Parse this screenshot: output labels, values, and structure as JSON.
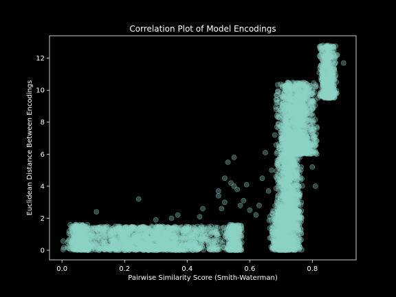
{
  "chart_data": {
    "type": "scatter",
    "title": "Correlation Plot of Model Encodings",
    "xlabel": "Pairwise Similarity Score (Smith-Waterman)",
    "ylabel": "Euclidean Distance Between Encodings",
    "xlim": [
      -0.04,
      0.94
    ],
    "ylim": [
      -0.6,
      13.4
    ],
    "xticks": [
      0.0,
      0.2,
      0.4,
      0.6,
      0.8
    ],
    "xtick_labels": [
      "0.0",
      "0.2",
      "0.4",
      "0.6",
      "0.8"
    ],
    "yticks": [
      0,
      2,
      4,
      6,
      8,
      10,
      12
    ],
    "ytick_labels": [
      "0",
      "2",
      "4",
      "6",
      "8",
      "10",
      "12"
    ],
    "grid": false,
    "marker_color": "#8dd3c7",
    "marker_alpha": 0.35,
    "background": "#000000",
    "foreground": "#ffffff",
    "clusters": [
      {
        "x_range": [
          0.0,
          0.55
        ],
        "y_range": [
          0.0,
          1.5
        ],
        "count": 1400
      },
      {
        "x_range": [
          0.02,
          0.1
        ],
        "y_range": [
          0.0,
          1.6
        ],
        "count": 300
      },
      {
        "x_range": [
          0.52,
          0.58
        ],
        "y_range": [
          0.0,
          1.6
        ],
        "count": 250
      },
      {
        "x_range": [
          0.66,
          0.77
        ],
        "y_range": [
          0.0,
          2.5
        ],
        "count": 700
      },
      {
        "x_range": [
          0.68,
          0.77
        ],
        "y_range": [
          2.0,
          6.0
        ],
        "count": 700
      },
      {
        "x_range": [
          0.68,
          0.82
        ],
        "y_range": [
          6.0,
          10.5
        ],
        "count": 1200
      },
      {
        "x_range": [
          0.82,
          0.88
        ],
        "y_range": [
          9.5,
          12.8
        ],
        "count": 500
      }
    ],
    "points": [
      [
        0.11,
        2.4
      ],
      [
        0.245,
        3.2
      ],
      [
        0.3,
        1.9
      ],
      [
        0.35,
        2.0
      ],
      [
        0.37,
        2.2
      ],
      [
        0.44,
        2.1
      ],
      [
        0.45,
        2.6
      ],
      [
        0.5,
        3.4
      ],
      [
        0.5,
        3.7
      ],
      [
        0.51,
        2.6
      ],
      [
        0.52,
        3.0
      ],
      [
        0.52,
        4.5
      ],
      [
        0.53,
        5.5
      ],
      [
        0.54,
        4.2
      ],
      [
        0.55,
        4.0
      ],
      [
        0.55,
        5.8
      ],
      [
        0.56,
        3.8
      ],
      [
        0.57,
        2.8
      ],
      [
        0.58,
        3.1
      ],
      [
        0.59,
        4.1
      ],
      [
        0.6,
        2.5
      ],
      [
        0.62,
        2.2
      ],
      [
        0.63,
        2.8
      ],
      [
        0.64,
        4.5
      ],
      [
        0.65,
        6.1
      ],
      [
        0.66,
        3.7
      ],
      [
        0.67,
        5.0
      ],
      [
        0.68,
        7.2
      ],
      [
        0.69,
        8.3
      ],
      [
        0.7,
        8.8
      ],
      [
        0.71,
        9.5
      ],
      [
        0.72,
        9.8
      ],
      [
        0.79,
        6.1
      ],
      [
        0.8,
        5.2
      ],
      [
        0.81,
        4.0
      ],
      [
        0.8,
        10.0
      ],
      [
        0.83,
        10.6
      ],
      [
        0.85,
        12.7
      ],
      [
        0.88,
        12.2
      ],
      [
        0.9,
        11.7
      ]
    ]
  }
}
